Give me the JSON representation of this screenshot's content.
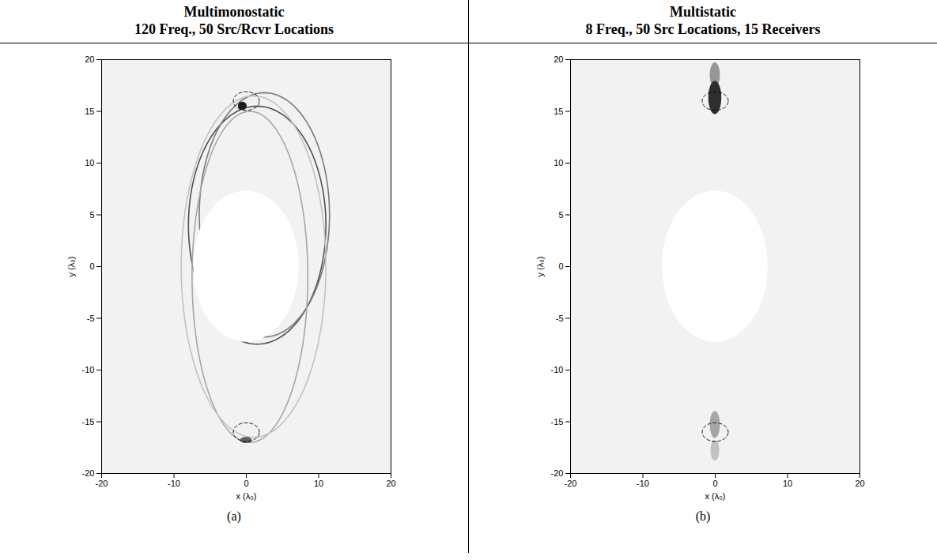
{
  "chart_data": [
    {
      "type": "image",
      "title": "Multimonostatic",
      "subtitle": "120 Freq., 50 Src/Rcvr Locations",
      "caption": "(a)",
      "x_label": "x (λ₀)",
      "y_label": "y (λ₀)",
      "xlim": [
        -20,
        20
      ],
      "xticks": [
        -20,
        -10,
        0,
        10,
        20
      ],
      "ylim": [
        -20,
        20
      ],
      "yticks": [
        -20,
        -15,
        -10,
        -5,
        0,
        5,
        10,
        15,
        20
      ],
      "color": "gray",
      "mask": {
        "x": 0,
        "y": 0,
        "r": 7.3
      },
      "targets": [
        {
          "x": 0,
          "y": 16,
          "rx": 1.8,
          "ry": 0.9
        },
        {
          "x": 0,
          "y": -16,
          "rx": 1.8,
          "ry": 0.9
        }
      ],
      "rings": [
        {
          "x": 1.5,
          "y": 4,
          "rx": 9.5,
          "ry": 11.5,
          "intensity": 0.75
        },
        {
          "x": 2.5,
          "y": 5,
          "rx": 9,
          "ry": 11.8,
          "intensity": 0.6
        },
        {
          "x": 0.5,
          "y": -1,
          "rx": 8,
          "ry": 16,
          "intensity": 0.45
        },
        {
          "x": 1,
          "y": 0,
          "rx": 10,
          "ry": 16.5,
          "intensity": 0.35
        }
      ],
      "spots": [
        {
          "x": -0.5,
          "y": 15.5,
          "rx": 0.6,
          "ry": 0.4,
          "intensity": 0.9
        },
        {
          "x": 0,
          "y": -16.8,
          "rx": 0.8,
          "ry": 0.3,
          "intensity": 0.7
        }
      ]
    },
    {
      "type": "image",
      "title": "Multistatic",
      "subtitle": "8 Freq., 50 Src Locations, 15 Receivers",
      "caption": "(b)",
      "x_label": "x (λ₀)",
      "y_label": "y (λ₀)",
      "xlim": [
        -20,
        20
      ],
      "xticks": [
        -20,
        -10,
        0,
        10,
        20
      ],
      "ylim": [
        -20,
        20
      ],
      "yticks": [
        -20,
        -15,
        -10,
        -5,
        0,
        5,
        10,
        15,
        20
      ],
      "color": "gray",
      "mask": {
        "x": 0,
        "y": 0,
        "r": 7.3
      },
      "targets": [
        {
          "x": 0,
          "y": 16,
          "rx": 1.8,
          "ry": 0.9
        },
        {
          "x": 0,
          "y": -16,
          "rx": 1.8,
          "ry": 0.9
        }
      ],
      "rings": [],
      "spots": [
        {
          "x": 0,
          "y": 18.5,
          "rx": 0.7,
          "ry": 1.2,
          "intensity": 0.5
        },
        {
          "x": 0,
          "y": 16.3,
          "rx": 0.9,
          "ry": 1.6,
          "intensity": 0.85
        },
        {
          "x": 0,
          "y": -15.3,
          "rx": 0.7,
          "ry": 1.3,
          "intensity": 0.45
        },
        {
          "x": 0,
          "y": -17.8,
          "rx": 0.6,
          "ry": 1.0,
          "intensity": 0.35
        }
      ]
    }
  ]
}
